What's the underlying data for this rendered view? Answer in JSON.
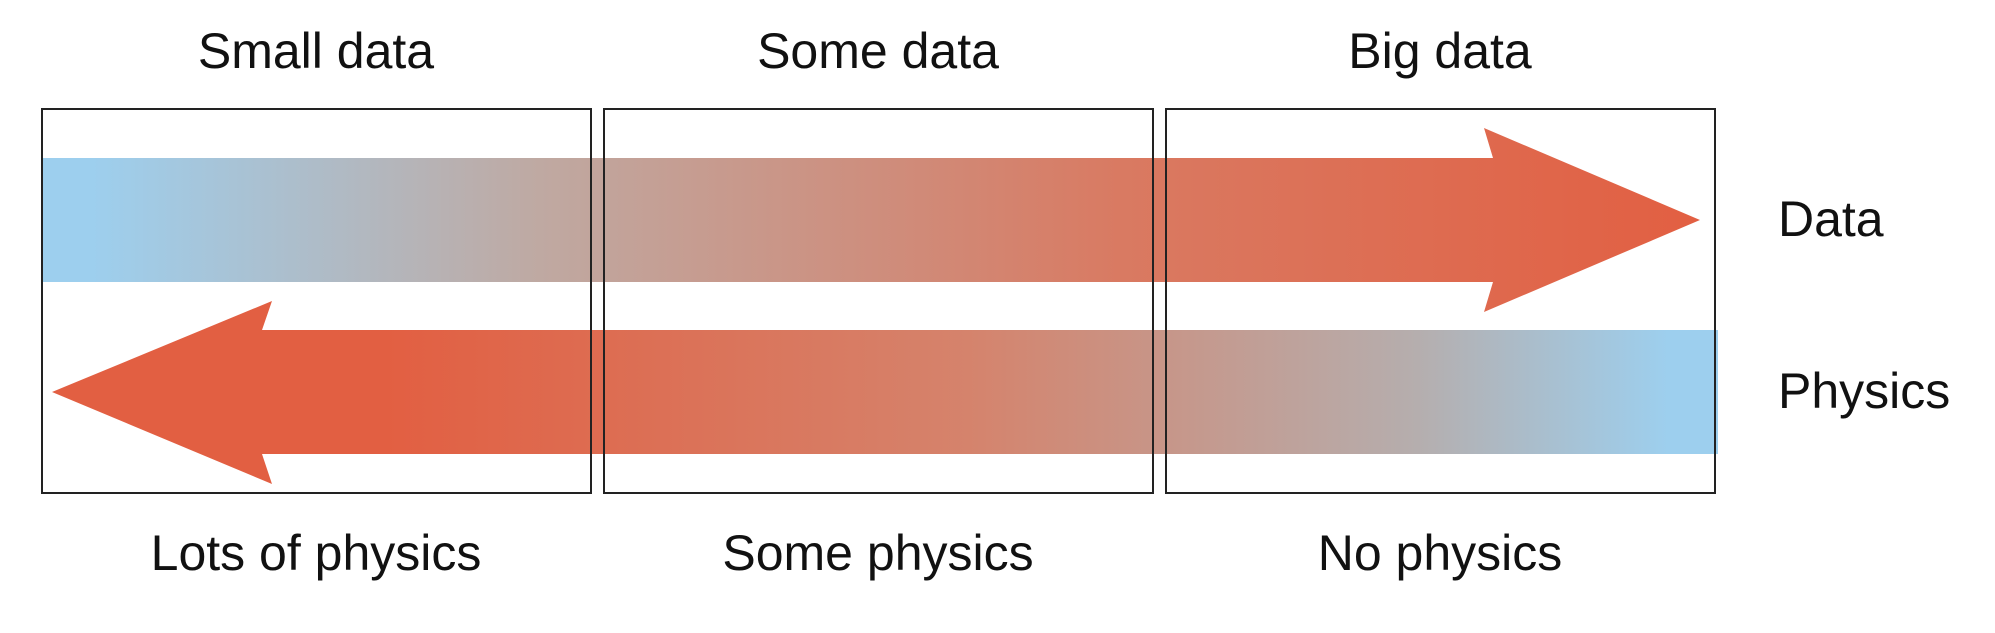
{
  "columns": [
    {
      "top_label": "Small data",
      "bottom_label": "Lots of physics"
    },
    {
      "top_label": "Some data",
      "bottom_label": "Some physics"
    },
    {
      "top_label": "Big data",
      "bottom_label": "No physics"
    }
  ],
  "arrows": {
    "data": {
      "label": "Data",
      "direction": "right"
    },
    "physics": {
      "label": "Physics",
      "direction": "left"
    }
  },
  "colors": {
    "low": "#9dcfee",
    "mid": "#bfa9a2",
    "high": "#e25f42",
    "frame": "#222222"
  }
}
